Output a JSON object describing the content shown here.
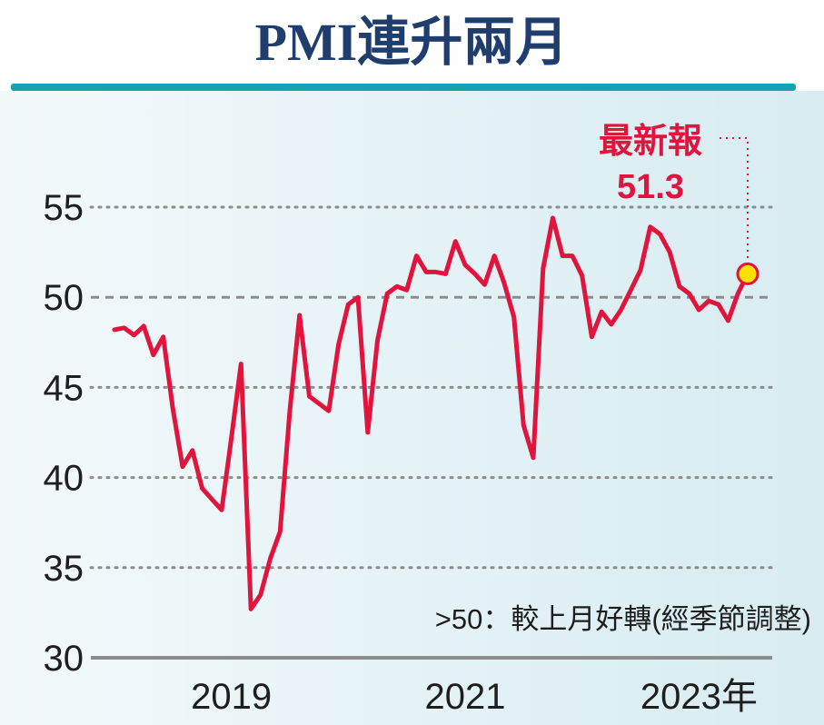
{
  "colors": {
    "line": "#e0143c",
    "title": "#1f3e6e",
    "rule": "#17a2b0",
    "marker": "#ffe100",
    "grid": "#8c8c8c",
    "panel": "#d7ecf1"
  },
  "chart_data": {
    "type": "line",
    "title": "PMI連升兩月",
    "xlabel": "",
    "ylabel": "",
    "ylim": [
      30,
      56
    ],
    "yticks": [
      30,
      35,
      40,
      45,
      50,
      55
    ],
    "reference_line": 50,
    "grid": "horizontal-dotted",
    "xtick_labels": [
      {
        "x": 2019.0,
        "label": "2019"
      },
      {
        "x": 2021.0,
        "label": "2021"
      },
      {
        "x": 2023.0,
        "label": "2023年"
      }
    ],
    "note": ">50：較上月好轉(經季節調整)",
    "annotation": {
      "label": "最新報",
      "value": "51.3"
    },
    "series": [
      {
        "points": [
          [
            2018.0,
            48.2
          ],
          [
            2018.083,
            48.3
          ],
          [
            2018.167,
            47.9
          ],
          [
            2018.25,
            48.4
          ],
          [
            2018.333,
            46.8
          ],
          [
            2018.417,
            47.8
          ],
          [
            2018.5,
            43.8
          ],
          [
            2018.583,
            40.6
          ],
          [
            2018.667,
            41.5
          ],
          [
            2018.75,
            39.4
          ],
          [
            2018.833,
            38.8
          ],
          [
            2018.917,
            38.2
          ],
          [
            2019.0,
            42.2
          ],
          [
            2019.083,
            46.3
          ],
          [
            2019.167,
            32.7
          ],
          [
            2019.25,
            33.5
          ],
          [
            2019.333,
            35.5
          ],
          [
            2019.417,
            37.0
          ],
          [
            2019.5,
            43.7
          ],
          [
            2019.583,
            49.0
          ],
          [
            2019.667,
            44.5
          ],
          [
            2019.75,
            44.1
          ],
          [
            2019.833,
            43.7
          ],
          [
            2019.917,
            47.4
          ],
          [
            2020.0,
            49.6
          ],
          [
            2020.083,
            50.0
          ],
          [
            2020.167,
            42.5
          ],
          [
            2020.25,
            47.6
          ],
          [
            2020.333,
            50.2
          ],
          [
            2020.417,
            50.6
          ],
          [
            2020.5,
            50.4
          ],
          [
            2020.583,
            52.3
          ],
          [
            2020.667,
            51.4
          ],
          [
            2020.75,
            51.4
          ],
          [
            2020.833,
            51.3
          ],
          [
            2020.917,
            53.1
          ],
          [
            2021.0,
            51.8
          ],
          [
            2021.083,
            51.3
          ],
          [
            2021.167,
            50.7
          ],
          [
            2021.25,
            52.3
          ],
          [
            2021.333,
            50.8
          ],
          [
            2021.417,
            48.9
          ],
          [
            2021.5,
            42.9
          ],
          [
            2021.583,
            41.1
          ],
          [
            2021.667,
            51.6
          ],
          [
            2021.75,
            54.4
          ],
          [
            2021.833,
            52.3
          ],
          [
            2021.917,
            52.3
          ],
          [
            2022.0,
            51.2
          ],
          [
            2022.083,
            47.8
          ],
          [
            2022.167,
            49.2
          ],
          [
            2022.25,
            48.5
          ],
          [
            2022.333,
            49.3
          ],
          [
            2022.417,
            50.4
          ],
          [
            2022.5,
            51.5
          ],
          [
            2022.583,
            53.9
          ],
          [
            2022.667,
            53.5
          ],
          [
            2022.75,
            52.5
          ],
          [
            2022.833,
            50.6
          ],
          [
            2022.917,
            50.2
          ],
          [
            2023.0,
            49.3
          ],
          [
            2023.083,
            49.8
          ],
          [
            2023.167,
            49.6
          ],
          [
            2023.25,
            48.7
          ],
          [
            2023.333,
            50.2
          ],
          [
            2023.417,
            51.3
          ]
        ]
      }
    ]
  }
}
